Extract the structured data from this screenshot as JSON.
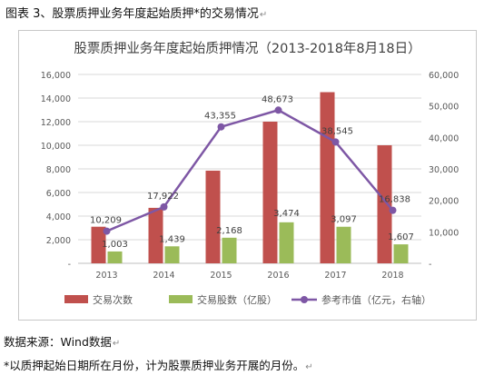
{
  "caption": "图表 3、股票质押业务年度起始质押*的交易情况",
  "source": "数据来源：Wind数据",
  "note": "*以质押起始日期所在月份，计为股票质押业务开展的月份。",
  "colors": {
    "bar_count": "#c0504d",
    "bar_shares": "#9bbb59",
    "line_value": "#7e57a5",
    "grid": "#d9d9d9",
    "axis_text": "#595959"
  },
  "chart_data": {
    "type": "bar",
    "title": "股票质押业务年度起始质押情况（2013-2018年8月18日）",
    "categories": [
      "2013",
      "2014",
      "2015",
      "2016",
      "2017",
      "2018"
    ],
    "ylim_left": [
      0,
      16000
    ],
    "yticks_left": [
      "-",
      "2,000",
      "4,000",
      "6,000",
      "8,000",
      "10,000",
      "12,000",
      "14,000",
      "16,000"
    ],
    "ylim_right": [
      0,
      60000
    ],
    "yticks_right": [
      "-",
      "10,000",
      "20,000",
      "30,000",
      "40,000",
      "50,000",
      "60,000"
    ],
    "grid": true,
    "legend_position": "bottom",
    "series": [
      {
        "name": "交易次数",
        "kind": "bar",
        "axis": "left",
        "values": [
          3100,
          4700,
          7850,
          12000,
          14500,
          10000
        ]
      },
      {
        "name": "交易股数（亿股）",
        "kind": "bar",
        "axis": "left",
        "values": [
          1003,
          1439,
          2168,
          3474,
          3097,
          1607
        ],
        "labels": [
          "1,003",
          "1,439",
          "2,168",
          "3,474",
          "3,097",
          "1,607"
        ]
      },
      {
        "name": "参考市值（亿元，右轴）",
        "kind": "line",
        "axis": "right",
        "values": [
          10209,
          17922,
          43355,
          48673,
          38545,
          16838
        ],
        "labels": [
          "10,209",
          "17,922",
          "43,355",
          "48,673",
          "38,545",
          "16,838"
        ]
      }
    ]
  }
}
